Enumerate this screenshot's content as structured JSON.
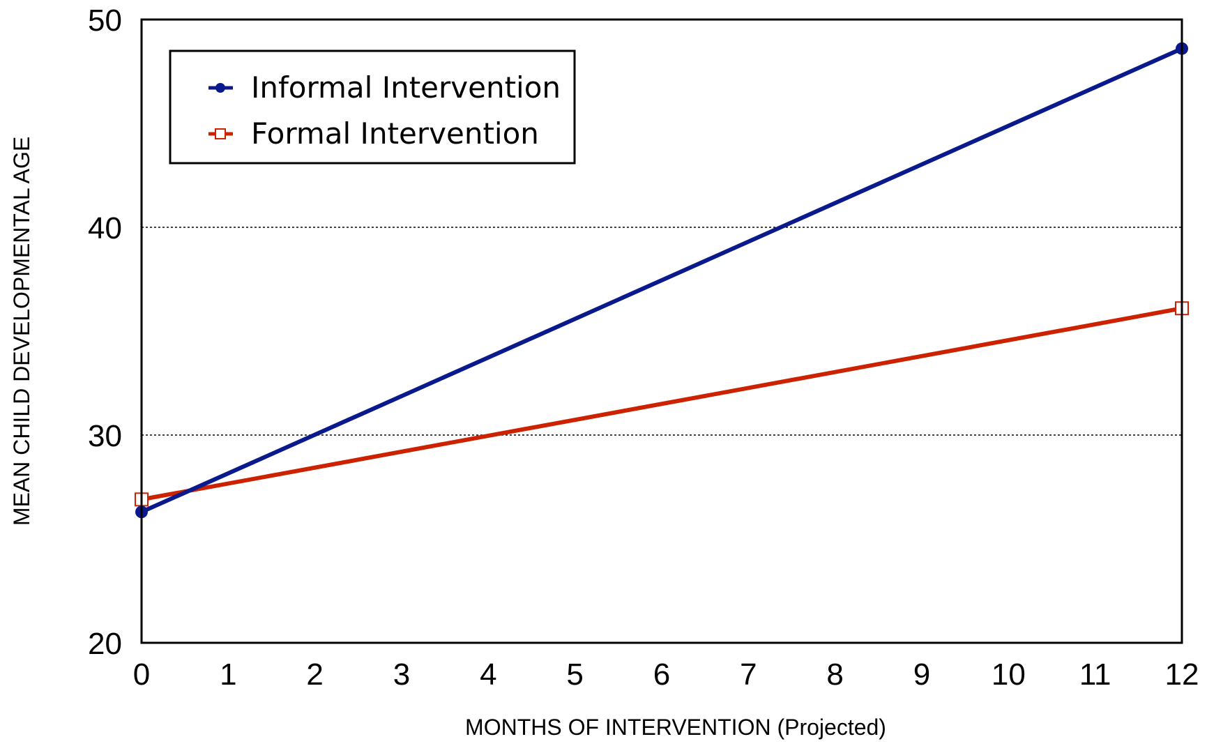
{
  "chart_data": {
    "type": "line",
    "xlabel": "MONTHS OF INTERVENTION (Projected)",
    "ylabel": "MEAN CHILD DEVELOPMENTAL AGE",
    "xlim": [
      0,
      12
    ],
    "ylim": [
      20,
      50
    ],
    "x_ticks": [
      "0",
      "1",
      "2",
      "3",
      "4",
      "5",
      "6",
      "7",
      "8",
      "9",
      "10",
      "11",
      "12"
    ],
    "y_ticks": [
      "20",
      "30",
      "40",
      "50"
    ],
    "grid": "horizontal dotted lines at 30 and 40",
    "legend_position": "top-left",
    "series": [
      {
        "name": "Informal Intervention",
        "color": "#0a1a8c",
        "marker": "filled-circle",
        "x": [
          0,
          12
        ],
        "y": [
          26.3,
          48.6
        ]
      },
      {
        "name": "Formal Intervention",
        "color": "#cc2200",
        "marker": "open-square",
        "x": [
          0,
          12
        ],
        "y": [
          26.9,
          36.1
        ]
      }
    ]
  }
}
